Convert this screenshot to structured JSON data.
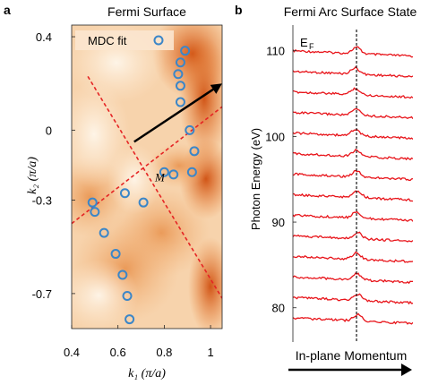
{
  "chart_data": [
    {
      "panel_label": "a",
      "type": "scatter",
      "title": "Fermi Surface",
      "xlabel": "k₁ (π/a)",
      "ylabel": "k₂ (π/a)",
      "xlim": [
        0.4,
        1.05
      ],
      "ylim": [
        -0.85,
        0.45
      ],
      "x_ticks": [
        0.4,
        0.6,
        0.8,
        1.0
      ],
      "x_tick_labels": [
        "0.4",
        "0.6",
        "0.8",
        "1"
      ],
      "y_ticks": [
        0.4,
        0.0,
        -0.3,
        -0.7
      ],
      "y_tick_labels": [
        "0.4",
        "0",
        "-0.3",
        "-0.7"
      ],
      "grid": false,
      "legend": {
        "label": "MDC fit",
        "placement": "top-left"
      },
      "annotations": [
        {
          "text": "M",
          "x": 0.76,
          "y": -0.22
        }
      ],
      "series": [
        {
          "name": "MDC fit",
          "points": [
            [
              0.89,
              0.34
            ],
            [
              0.87,
              0.29
            ],
            [
              0.86,
              0.24
            ],
            [
              0.87,
              0.19
            ],
            [
              0.87,
              0.12
            ],
            [
              0.91,
              0.0
            ],
            [
              0.93,
              -0.09
            ],
            [
              0.92,
              -0.18
            ],
            [
              0.84,
              -0.19
            ],
            [
              0.8,
              -0.18
            ],
            [
              0.63,
              -0.27
            ],
            [
              0.71,
              -0.31
            ],
            [
              0.49,
              -0.31
            ],
            [
              0.5,
              -0.35
            ],
            [
              0.54,
              -0.44
            ],
            [
              0.59,
              -0.53
            ],
            [
              0.62,
              -0.62
            ],
            [
              0.64,
              -0.71
            ],
            [
              0.65,
              -0.81
            ]
          ]
        }
      ],
      "dashed_lines": [
        {
          "from": [
            0.4,
            -0.4
          ],
          "to": [
            1.05,
            0.1
          ]
        },
        {
          "from": [
            0.47,
            0.23
          ],
          "to": [
            1.05,
            -0.72
          ]
        }
      ],
      "arrow": {
        "from": [
          0.67,
          -0.05
        ],
        "to": [
          1.05,
          0.2
        ]
      },
      "colors": {
        "markers": "#3b86c8",
        "dashed": "#e52424",
        "map_high": "#d8621a",
        "map_low": "#fdf1e2",
        "arrow": "#000000"
      }
    },
    {
      "panel_label": "b",
      "type": "line",
      "title": "Fermi Arc Surface State",
      "xlabel": "In-plane Momentum",
      "ylabel": "Photon Energy (eV)",
      "ylim": [
        76,
        113
      ],
      "y_ticks": [
        80,
        90,
        100,
        110
      ],
      "grid": false,
      "ef_marker_label": "E",
      "ef_marker_subscript": "F",
      "series": [
        {
          "offset": 110.0,
          "peak": 0.53
        },
        {
          "offset": 107.6,
          "peak": 0.52
        },
        {
          "offset": 105.2,
          "peak": 0.52
        },
        {
          "offset": 102.8,
          "peak": 0.53
        },
        {
          "offset": 100.4,
          "peak": 0.52
        },
        {
          "offset": 98.0,
          "peak": 0.53
        },
        {
          "offset": 95.6,
          "peak": 0.53
        },
        {
          "offset": 93.2,
          "peak": 0.54
        },
        {
          "offset": 90.8,
          "peak": 0.53
        },
        {
          "offset": 88.4,
          "peak": 0.54
        },
        {
          "offset": 86.0,
          "peak": 0.53
        },
        {
          "offset": 83.6,
          "peak": 0.53
        },
        {
          "offset": 81.2,
          "peak": 0.54
        },
        {
          "offset": 78.8,
          "peak": 0.54
        }
      ],
      "colors": {
        "curves": "#e8141a",
        "ef_line": "#000000",
        "arrow": "#000000"
      }
    }
  ]
}
